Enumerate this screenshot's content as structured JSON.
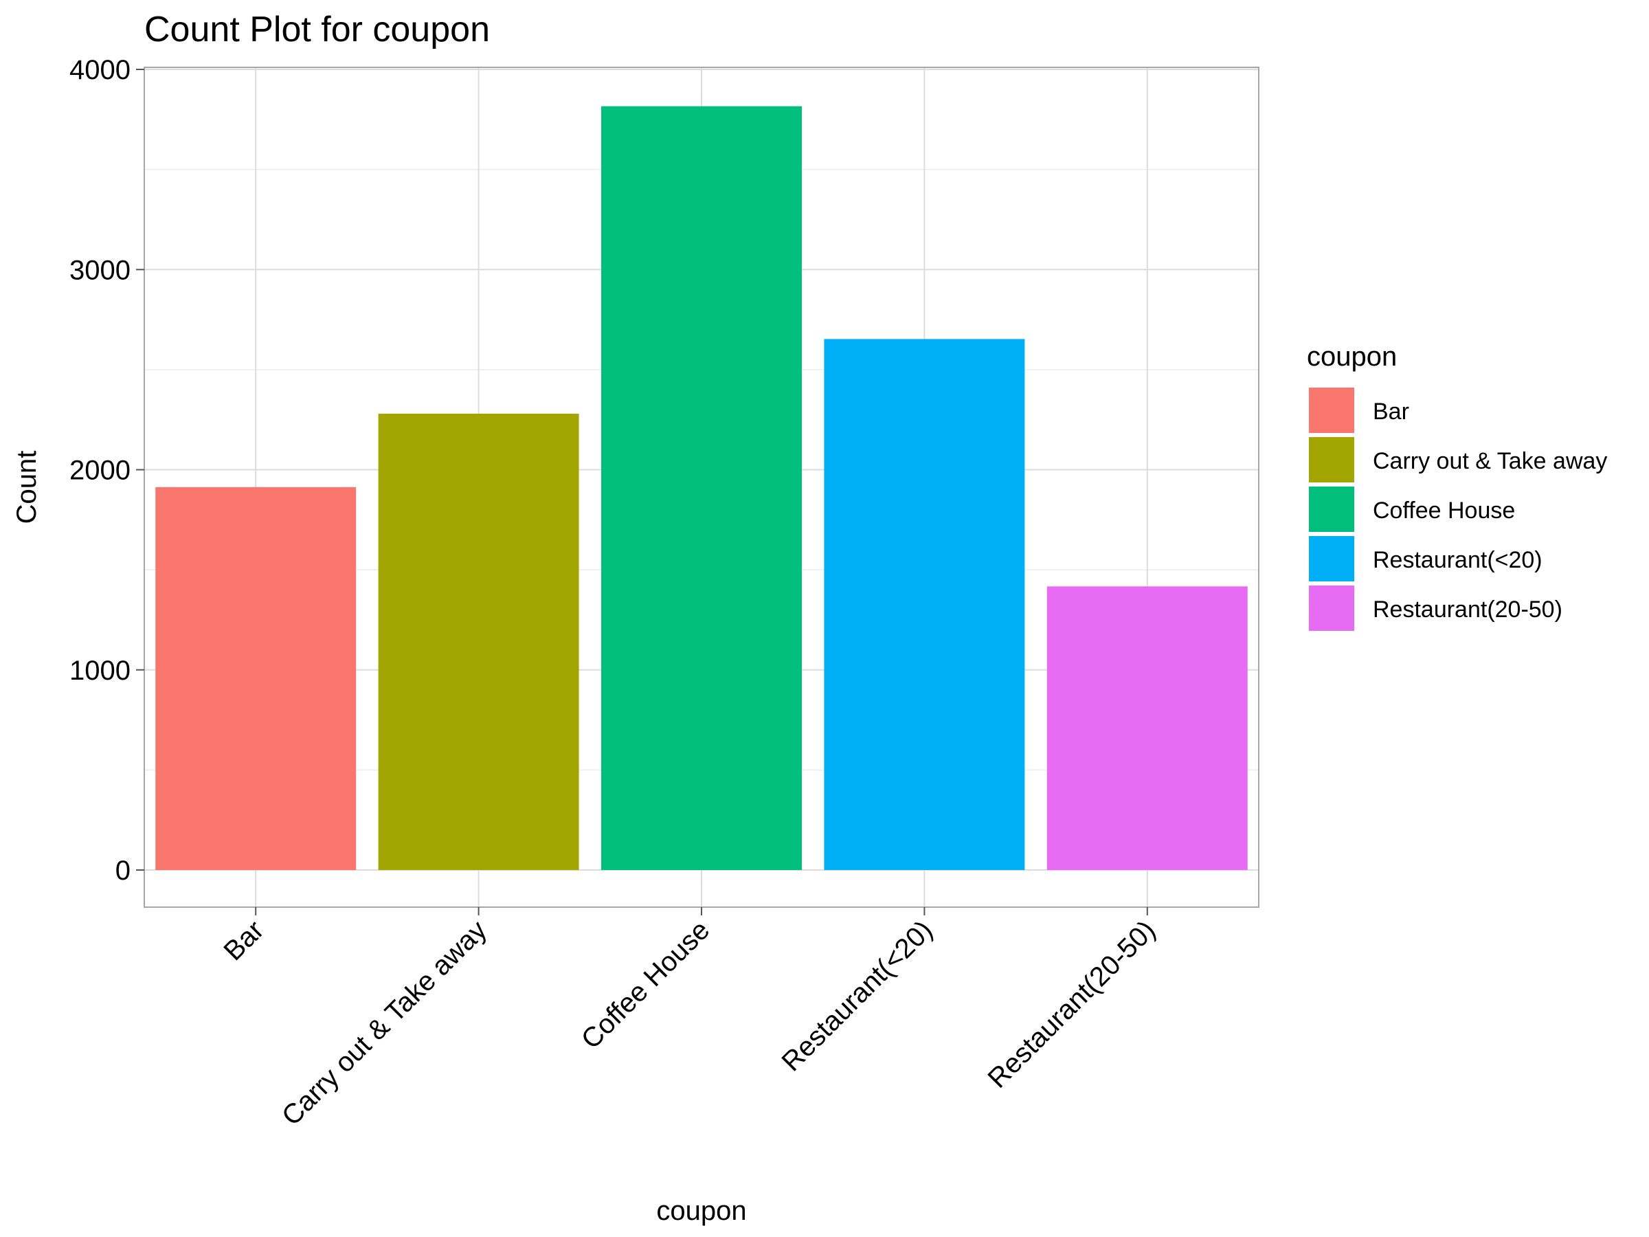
{
  "chart_data": {
    "type": "bar",
    "title": "Count Plot for coupon",
    "xlabel": "coupon",
    "ylabel": "Count",
    "categories": [
      "Bar",
      "Carry out & Take away",
      "Coffee House",
      "Restaurant(<20)",
      "Restaurant(20-50)"
    ],
    "values": [
      1913,
      2280,
      3816,
      2653,
      1417
    ],
    "colors": [
      "#F8766D",
      "#A3A500",
      "#00BF7D",
      "#00B0F6",
      "#E76BF3"
    ],
    "ylim": [
      -180,
      4000
    ],
    "yticks": [
      0,
      1000,
      2000,
      3000,
      4000
    ],
    "ytick_labels": [
      "0",
      "1000",
      "2000",
      "3000",
      "4000"
    ],
    "grid": true,
    "legend": {
      "title": "coupon",
      "placement": "right",
      "entries": [
        "Bar",
        "Carry out & Take away",
        "Coffee House",
        "Restaurant(<20)",
        "Restaurant(20-50)"
      ]
    }
  }
}
